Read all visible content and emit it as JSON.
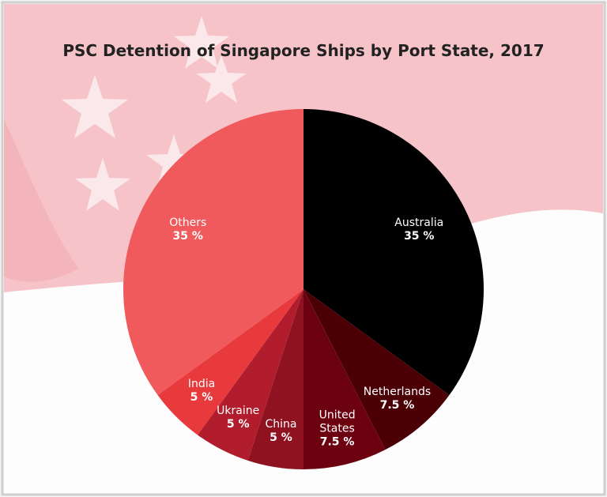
{
  "chart_data": {
    "type": "pie",
    "title": "PSC Detention of Singapore Ships by Port State, 2017",
    "categories": [
      "Australia",
      "Netherlands",
      "United States",
      "China",
      "Ukraine",
      "India",
      "Others"
    ],
    "values": [
      35,
      7.5,
      7.5,
      5,
      5,
      5,
      35
    ],
    "value_labels": [
      "35 %",
      "7.5 %",
      "7.5 %",
      "5 %",
      "5 %",
      "5 %",
      "35 %"
    ],
    "colors": [
      "#000000",
      "#4a0005",
      "#6c0210",
      "#8e1220",
      "#b21d2d",
      "#e8393c",
      "#f05a5c"
    ]
  }
}
